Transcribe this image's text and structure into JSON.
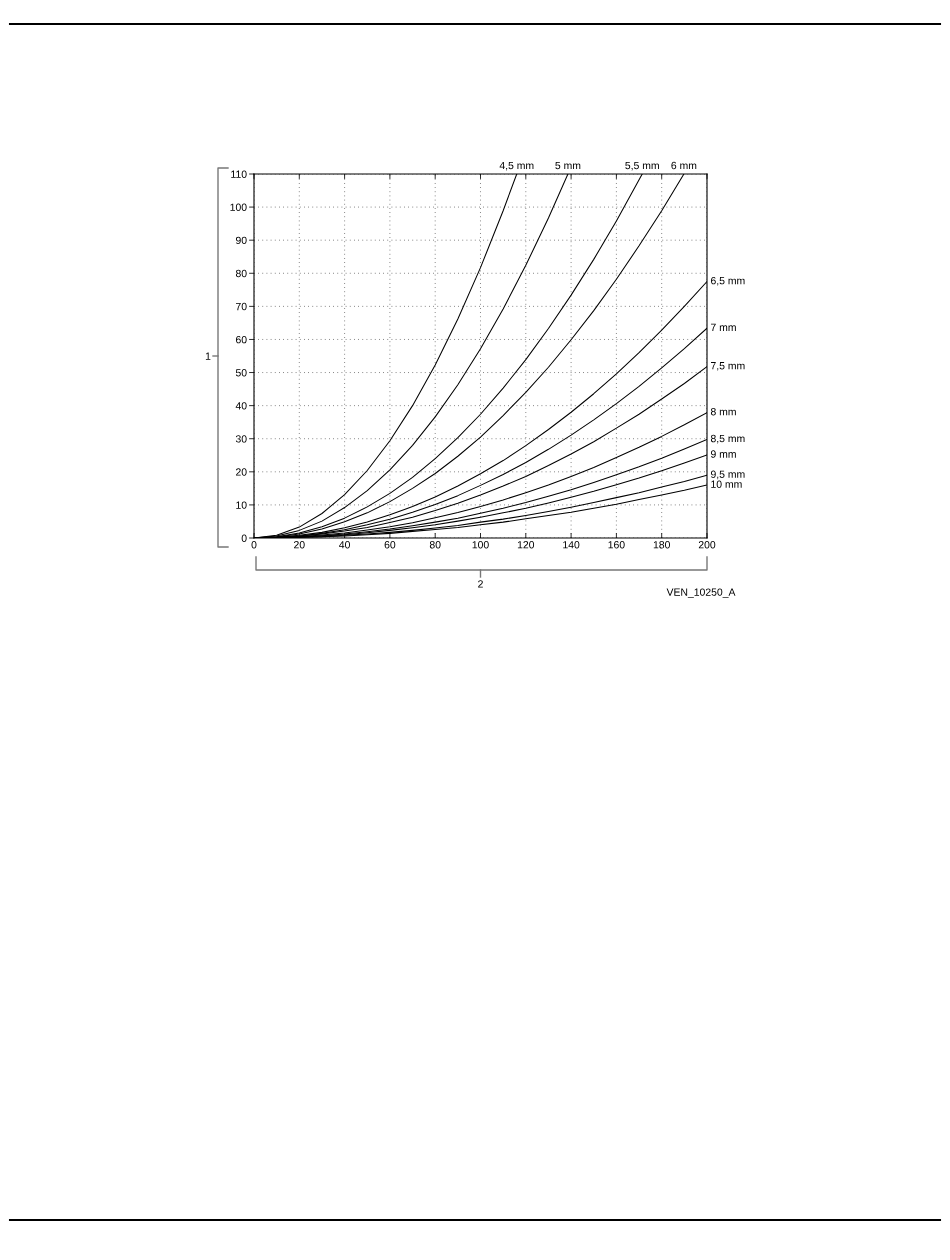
{
  "chart_data": {
    "type": "line",
    "xlabel": "2",
    "ylabel": "1",
    "annotations": [
      "VEN_10250_A"
    ],
    "x": [
      0,
      10,
      20,
      30,
      40,
      50,
      60,
      70,
      80,
      90,
      100,
      110,
      120,
      130,
      140,
      150,
      160,
      170,
      180,
      190,
      200
    ],
    "xlim": [
      0,
      200
    ],
    "ylim": [
      0,
      110
    ],
    "xticks": [
      0,
      20,
      40,
      60,
      80,
      100,
      120,
      140,
      160,
      180,
      200
    ],
    "yticks": [
      0,
      10,
      20,
      30,
      40,
      50,
      60,
      70,
      80,
      90,
      100,
      110
    ],
    "grid": true,
    "marker": "none",
    "line_style": "solid",
    "series": [
      {
        "name": "4,5 mm",
        "color": "#000000",
        "x": [
          0,
          10,
          20,
          30,
          40,
          50,
          60,
          70,
          80,
          90,
          100,
          110,
          116
        ],
        "values": [
          0,
          0.8,
          3.3,
          7.4,
          13.1,
          20.4,
          29.4,
          40.0,
          52.3,
          66.2,
          81.7,
          98.9,
          110
        ]
      },
      {
        "name": "5 mm",
        "color": "#000000",
        "x": [
          0,
          10,
          20,
          30,
          40,
          50,
          60,
          70,
          80,
          90,
          100,
          110,
          120,
          130,
          138.6
        ],
        "values": [
          0,
          0.6,
          2.3,
          5.1,
          9.2,
          14.3,
          20.6,
          28.0,
          36.6,
          46.3,
          57.2,
          69.2,
          82.4,
          96.7,
          110
        ]
      },
      {
        "name": "5,5 mm",
        "color": "#000000",
        "x": [
          0,
          10,
          20,
          30,
          40,
          50,
          60,
          70,
          80,
          90,
          100,
          110,
          120,
          130,
          140,
          150,
          160,
          171.4
        ],
        "values": [
          0,
          0.4,
          1.5,
          3.4,
          6.0,
          9.4,
          13.5,
          18.3,
          24.0,
          30.3,
          37.4,
          45.3,
          53.9,
          63.3,
          73.4,
          84.2,
          95.8,
          110
        ]
      },
      {
        "name": "6 mm",
        "color": "#000000",
        "x": [
          0,
          10,
          20,
          30,
          40,
          50,
          60,
          70,
          80,
          90,
          100,
          110,
          120,
          130,
          140,
          150,
          160,
          170,
          180,
          189.8
        ],
        "values": [
          0,
          0.3,
          1.2,
          2.7,
          4.9,
          7.6,
          11.0,
          15.0,
          19.5,
          24.7,
          30.5,
          37.0,
          44.0,
          51.6,
          59.9,
          68.7,
          78.2,
          88.3,
          98.9,
          110
        ]
      },
      {
        "name": "6,5 mm",
        "color": "#000000",
        "values": [
          0,
          0.2,
          0.8,
          1.7,
          3.1,
          4.8,
          7.0,
          9.5,
          12.4,
          15.7,
          19.4,
          23.4,
          27.9,
          32.8,
          38.0,
          43.6,
          49.6,
          56.0,
          62.8,
          70.0,
          77.5
        ]
      },
      {
        "name": "7 mm",
        "color": "#000000",
        "values": [
          0,
          0.2,
          0.6,
          1.4,
          2.5,
          4.0,
          5.7,
          7.8,
          10.1,
          12.8,
          15.9,
          19.2,
          22.8,
          26.8,
          31.1,
          35.7,
          40.6,
          45.8,
          51.4,
          57.2,
          63.4
        ]
      },
      {
        "name": "7,5 mm",
        "color": "#000000",
        "values": [
          0,
          0.1,
          0.5,
          1.2,
          2.1,
          3.2,
          4.7,
          6.3,
          8.3,
          10.5,
          13.0,
          15.7,
          18.6,
          21.9,
          25.4,
          29.1,
          33.2,
          37.4,
          42.0,
          46.7,
          51.8
        ]
      },
      {
        "name": "8 mm",
        "color": "#000000",
        "values": [
          0,
          0.1,
          0.4,
          0.9,
          1.5,
          2.4,
          3.4,
          4.6,
          6.1,
          7.7,
          9.5,
          11.5,
          13.7,
          16.0,
          18.6,
          21.3,
          24.3,
          27.4,
          30.7,
          34.2,
          37.9
        ]
      },
      {
        "name": "8,5 mm",
        "color": "#000000",
        "values": [
          0,
          0.1,
          0.3,
          0.7,
          1.2,
          1.9,
          2.7,
          3.7,
          4.8,
          6.0,
          7.5,
          9.0,
          10.7,
          12.6,
          14.6,
          16.8,
          19.1,
          21.5,
          24.1,
          26.9,
          29.8
        ]
      },
      {
        "name": "9 mm",
        "color": "#000000",
        "values": [
          0,
          0.1,
          0.3,
          0.6,
          1.0,
          1.6,
          2.3,
          3.1,
          4.0,
          5.1,
          6.3,
          7.6,
          9.0,
          10.6,
          12.3,
          14.1,
          16.1,
          18.1,
          20.3,
          22.7,
          25.1
        ]
      },
      {
        "name": "9,5 mm",
        "color": "#000000",
        "values": [
          0,
          0.0,
          0.2,
          0.4,
          0.8,
          1.2,
          1.7,
          2.3,
          3.0,
          3.8,
          4.8,
          5.7,
          6.8,
          8.0,
          9.3,
          10.7,
          12.2,
          13.7,
          15.4,
          17.1,
          19.0
        ]
      },
      {
        "name": "10 mm",
        "color": "#000000",
        "values": [
          0,
          0.0,
          0.2,
          0.4,
          0.6,
          1.0,
          1.4,
          2.0,
          2.6,
          3.2,
          4.0,
          4.8,
          5.8,
          6.8,
          7.8,
          9.0,
          10.2,
          11.6,
          13.0,
          14.4,
          16.0
        ]
      }
    ]
  }
}
